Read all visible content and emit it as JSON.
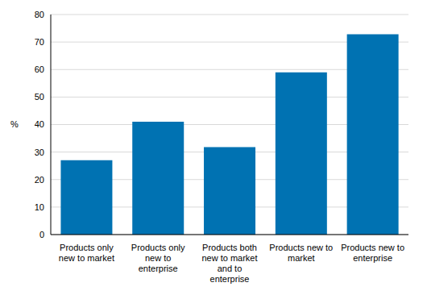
{
  "chart_data": {
    "type": "bar",
    "categories": [
      "Products only new to market",
      "Products only new to enterprise",
      "Products both new to market and to enterprise",
      "Products new to market",
      "Products new to enterprise"
    ],
    "values": [
      27,
      41,
      31.8,
      59,
      72.8
    ],
    "color": "#0072b2",
    "y_label": "%",
    "ylim": [
      0,
      80
    ],
    "yticks": [
      0,
      10,
      20,
      30,
      40,
      50,
      60,
      70,
      80
    ],
    "grid": true
  }
}
